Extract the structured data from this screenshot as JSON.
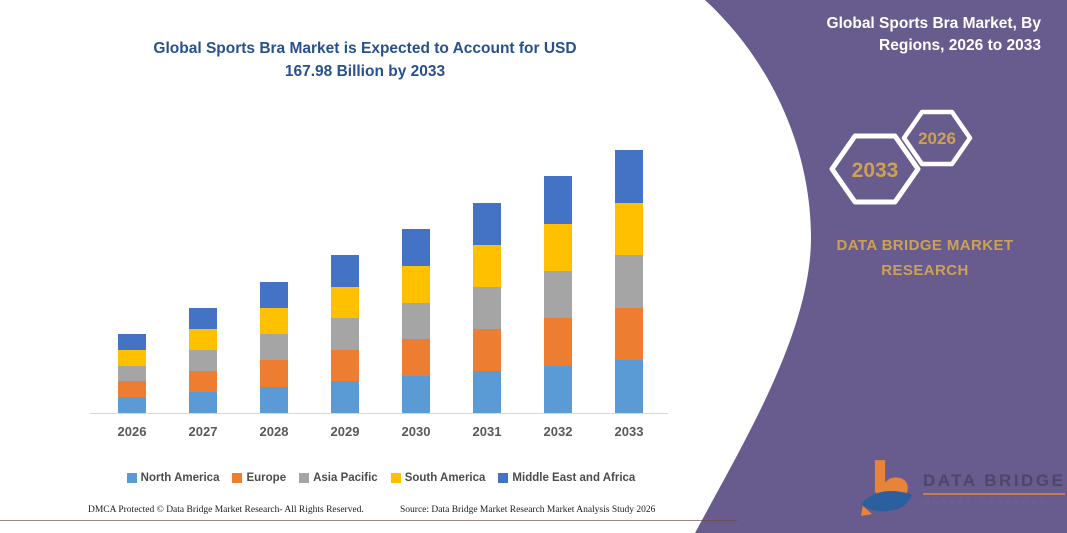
{
  "chart_panel": {
    "title_lines": [
      "Global Sports Bra Market is Expected to Account for USD",
      "167.98 Billion by 2033"
    ]
  },
  "chart_data": {
    "type": "bar",
    "stacked": true,
    "title": "Global Sports Bra Market is Expected to Account for USD 167.98 Billion by 2033",
    "unit": "USD Billion (estimated from bar heights)",
    "categories": [
      "2026",
      "2027",
      "2028",
      "2029",
      "2030",
      "2031",
      "2032",
      "2033"
    ],
    "totals": [
      50.4,
      67.2,
      84.0,
      100.8,
      117.6,
      134.4,
      151.2,
      167.98
    ],
    "series": [
      {
        "name": "North America",
        "color": "#5B9BD5",
        "values": [
          10.08,
          13.44,
          16.8,
          20.16,
          23.52,
          26.88,
          30.24,
          33.6
        ]
      },
      {
        "name": "Europe",
        "color": "#ED7D31",
        "values": [
          10.08,
          13.44,
          16.8,
          20.16,
          23.52,
          26.88,
          30.24,
          33.6
        ]
      },
      {
        "name": "Asia Pacific",
        "color": "#A5A5A5",
        "values": [
          10.08,
          13.44,
          16.8,
          20.16,
          23.52,
          26.88,
          30.24,
          33.59
        ]
      },
      {
        "name": "South America",
        "color": "#FFC000",
        "values": [
          10.08,
          13.44,
          16.8,
          20.16,
          23.52,
          26.88,
          30.24,
          33.6
        ]
      },
      {
        "name": "Middle East and Africa",
        "color": "#4472C4",
        "values": [
          10.08,
          13.44,
          16.8,
          20.16,
          23.52,
          26.88,
          30.24,
          33.59
        ]
      }
    ],
    "legend_position": "bottom",
    "ylim": [
      0,
      175
    ],
    "gridlines": false,
    "y_axis_visible": false
  },
  "side_panel": {
    "title_lines": [
      "Global Sports Bra Market, By",
      "Regions, 2026 to 2033"
    ],
    "hexagon_years": [
      "2033",
      "2026"
    ],
    "brand_lines": [
      "DATA BRIDGE MARKET",
      "RESEARCH"
    ],
    "logo": {
      "name_line": "DATA BRIDGE",
      "subtitle_line": "MARKET RESEARCH"
    }
  },
  "footer": {
    "dmca": "DMCA Protected © Data Bridge Market Research-  All Rights Reserved.",
    "source": "Source: Data Bridge Market Research  Market Analysis Study 2026"
  },
  "colors": {
    "panel_purple": "#675C8D",
    "brand_gold": "#CDA155",
    "title_blue": "#27518E",
    "axis_line": "#D9D9D9",
    "axis_label": "#595959",
    "legend_text": "#4C4C4C",
    "footer_rule": "#6E4444",
    "logo_orange": "#E8833A",
    "logo_blue": "#2B5F9E"
  }
}
